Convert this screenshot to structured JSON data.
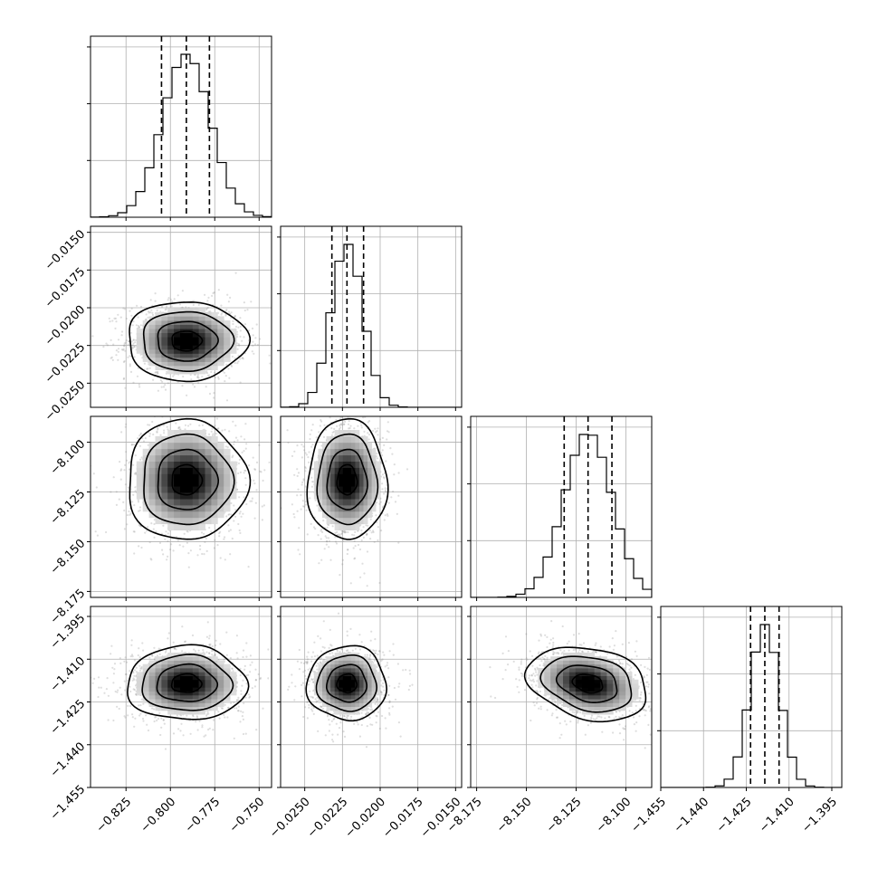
{
  "chart_data": {
    "type": "corner",
    "title": "",
    "parameters": [
      {
        "index": 0,
        "label": "",
        "range": [
          -0.845,
          -0.743
        ],
        "median": -0.791,
        "quantiles": [
          -0.805,
          -0.791,
          -0.778
        ],
        "std": 0.0135,
        "ticks": [
          -0.825,
          -0.8,
          -0.775,
          -0.75
        ],
        "tick_labels": [
          "−0.825",
          "−0.800",
          "−0.775",
          "−0.750"
        ]
      },
      {
        "index": 1,
        "label": "",
        "range": [
          -0.0266,
          -0.0146
        ],
        "median": -0.0222,
        "quantiles": [
          -0.0232,
          -0.0222,
          -0.0211
        ],
        "std": 0.00105,
        "ticks": [
          -0.025,
          -0.0225,
          -0.02,
          -0.0175,
          -0.015
        ],
        "tick_labels": [
          "−0.0250",
          "−0.0225",
          "−0.0200",
          "−0.0175",
          "−0.0150"
        ]
      },
      {
        "index": 2,
        "label": "",
        "range": [
          -8.178,
          -8.087
        ],
        "median": -8.119,
        "quantiles": [
          -8.131,
          -8.119,
          -8.107
        ],
        "std": 0.0121,
        "ticks": [
          -8.175,
          -8.15,
          -8.125,
          -8.1
        ],
        "tick_labels": [
          "−8.175",
          "−8.150",
          "−8.125",
          "−8.100"
        ]
      },
      {
        "index": 3,
        "label": "",
        "range": [
          -1.455,
          -1.3915
        ],
        "median": -1.4185,
        "quantiles": [
          -1.4235,
          -1.4185,
          -1.4135
        ],
        "std": 0.0052,
        "ticks": [
          -1.455,
          -1.44,
          -1.425,
          -1.41,
          -1.395
        ],
        "tick_labels": [
          "−1.455",
          "−1.440",
          "−1.425",
          "−1.410",
          "−1.395"
        ]
      }
    ],
    "correlations": [
      {
        "pair": [
          1,
          0
        ],
        "rho": 0.0
      },
      {
        "pair": [
          2,
          0
        ],
        "rho": 0.0
      },
      {
        "pair": [
          2,
          1
        ],
        "rho": 0.0
      },
      {
        "pair": [
          3,
          0
        ],
        "rho": 0.0
      },
      {
        "pair": [
          3,
          1
        ],
        "rho": 0.0
      },
      {
        "pair": [
          3,
          2
        ],
        "rho": -0.25
      }
    ],
    "grid": true,
    "contour_levels_sigma": [
      0.5,
      1.0,
      1.5,
      2.0
    ],
    "histogram_bins": 20
  }
}
